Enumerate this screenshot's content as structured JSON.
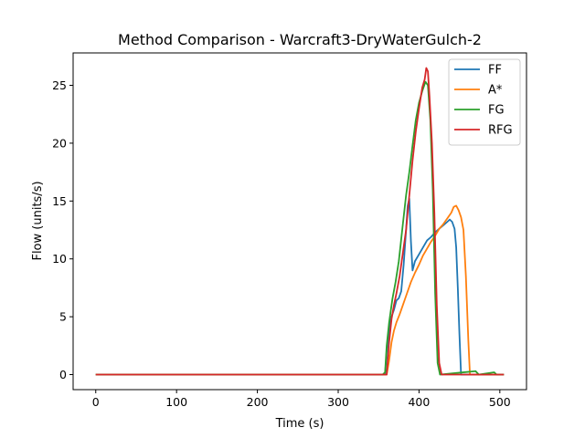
{
  "chart_data": {
    "type": "line",
    "title": "Method Comparison - Warcraft3-DryWaterGulch-2",
    "xlabel": "Time (s)",
    "ylabel": "Flow (units/s)",
    "xlim": [
      -28,
      533
    ],
    "ylim": [
      -1.3,
      27.8
    ],
    "xticks": [
      0,
      100,
      200,
      300,
      400,
      500
    ],
    "yticks": [
      0,
      5,
      10,
      15,
      20,
      25
    ],
    "grid": false,
    "legend_position": "top-right",
    "series": [
      {
        "name": "FF",
        "color": "#1f77b4",
        "points": [
          [
            0,
            0
          ],
          [
            358,
            0
          ],
          [
            360,
            2
          ],
          [
            363,
            3.8
          ],
          [
            366,
            5.0
          ],
          [
            369,
            5.6
          ],
          [
            372,
            6.4
          ],
          [
            375,
            6.6
          ],
          [
            378,
            7.2
          ],
          [
            381,
            9.5
          ],
          [
            384,
            12.5
          ],
          [
            386,
            14.6
          ],
          [
            388,
            15.2
          ],
          [
            390,
            11.5
          ],
          [
            392,
            9.0
          ],
          [
            395,
            9.8
          ],
          [
            400,
            10.4
          ],
          [
            405,
            11.0
          ],
          [
            410,
            11.6
          ],
          [
            415,
            11.9
          ],
          [
            420,
            12.3
          ],
          [
            425,
            12.6
          ],
          [
            430,
            12.9
          ],
          [
            435,
            13.2
          ],
          [
            438,
            13.4
          ],
          [
            441,
            13.2
          ],
          [
            444,
            12.6
          ],
          [
            446,
            11.0
          ],
          [
            448,
            7.5
          ],
          [
            450,
            3.5
          ],
          [
            452,
            0
          ],
          [
            505,
            0
          ]
        ]
      },
      {
        "name": "A*",
        "color": "#ff7f0e",
        "points": [
          [
            0,
            0
          ],
          [
            360,
            0
          ],
          [
            363,
            1.2
          ],
          [
            366,
            2.8
          ],
          [
            369,
            3.8
          ],
          [
            372,
            4.5
          ],
          [
            376,
            5.2
          ],
          [
            380,
            6.0
          ],
          [
            385,
            7.0
          ],
          [
            390,
            8.0
          ],
          [
            395,
            8.8
          ],
          [
            400,
            9.5
          ],
          [
            405,
            10.3
          ],
          [
            410,
            10.9
          ],
          [
            415,
            11.5
          ],
          [
            420,
            12.0
          ],
          [
            425,
            12.6
          ],
          [
            430,
            13.0
          ],
          [
            435,
            13.5
          ],
          [
            440,
            14.0
          ],
          [
            443,
            14.5
          ],
          [
            446,
            14.6
          ],
          [
            449,
            14.2
          ],
          [
            452,
            13.6
          ],
          [
            455,
            12.5
          ],
          [
            458,
            8.5
          ],
          [
            461,
            3.0
          ],
          [
            463,
            0
          ],
          [
            505,
            0
          ]
        ]
      },
      {
        "name": "FG",
        "color": "#2ca02c",
        "points": [
          [
            0,
            0
          ],
          [
            355,
            0
          ],
          [
            358,
            0.2
          ],
          [
            360,
            2.5
          ],
          [
            363,
            4.5
          ],
          [
            367,
            6.5
          ],
          [
            371,
            8.0
          ],
          [
            375,
            9.8
          ],
          [
            380,
            13.0
          ],
          [
            384,
            15.5
          ],
          [
            388,
            17.5
          ],
          [
            392,
            19.8
          ],
          [
            396,
            22.0
          ],
          [
            400,
            23.5
          ],
          [
            404,
            24.5
          ],
          [
            408,
            25.3
          ],
          [
            411,
            25.0
          ],
          [
            414,
            22.0
          ],
          [
            417,
            16.0
          ],
          [
            420,
            7.0
          ],
          [
            423,
            1.0
          ],
          [
            426,
            0
          ],
          [
            470,
            0.3
          ],
          [
            474,
            0
          ],
          [
            493,
            0.2
          ],
          [
            496,
            0
          ],
          [
            505,
            0
          ]
        ]
      },
      {
        "name": "RFG",
        "color": "#d62728",
        "points": [
          [
            0,
            0
          ],
          [
            360,
            0
          ],
          [
            363,
            2.8
          ],
          [
            366,
            4.8
          ],
          [
            369,
            6.0
          ],
          [
            372,
            7.0
          ],
          [
            376,
            8.5
          ],
          [
            380,
            10.5
          ],
          [
            384,
            12.5
          ],
          [
            388,
            15.5
          ],
          [
            392,
            18.5
          ],
          [
            396,
            21.0
          ],
          [
            400,
            23.0
          ],
          [
            404,
            24.8
          ],
          [
            407,
            25.5
          ],
          [
            409,
            26.5
          ],
          [
            411,
            26.2
          ],
          [
            413,
            24.0
          ],
          [
            416,
            20.0
          ],
          [
            419,
            14.0
          ],
          [
            422,
            6.0
          ],
          [
            425,
            1.0
          ],
          [
            428,
            0
          ],
          [
            505,
            0
          ]
        ]
      }
    ]
  }
}
